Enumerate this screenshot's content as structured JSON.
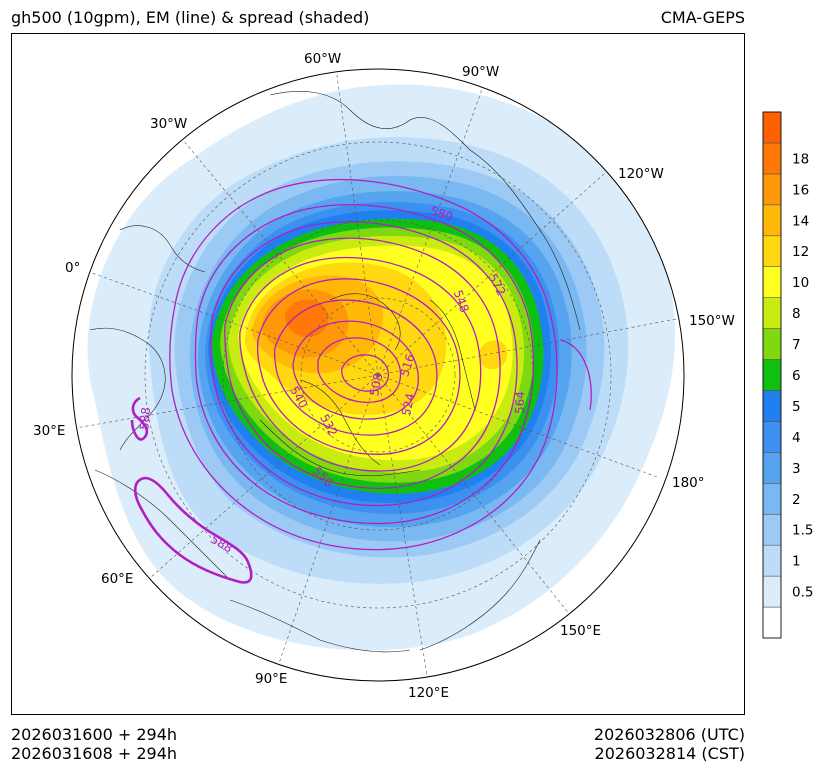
{
  "title": {
    "left": "gh500 (10gpm), EM (line) & spread (shaded)",
    "right": "CMA-GEPS"
  },
  "footer": {
    "init_utc": "2026031600 + 294h",
    "init_cst": "2026031608 + 294h",
    "valid_utc": "2026032806 (UTC)",
    "valid_cst": "2026032814 (CST)"
  },
  "map": {
    "projection": "north-polar-stereographic",
    "longitude_labels": [
      "60°W",
      "90°W",
      "30°W",
      "120°W",
      "0°",
      "150°W",
      "30°E",
      "180°",
      "60°E",
      "150°E",
      "90°E",
      "120°E"
    ],
    "contour_labels": [
      "580",
      "572",
      "548",
      "516",
      "508",
      "524",
      "564",
      "540",
      "532",
      "556",
      "588",
      "588"
    ],
    "contour_color": "#b020c0"
  },
  "colorbar": {
    "levels": [
      "0.5",
      "1",
      "1.5",
      "2",
      "3",
      "4",
      "5",
      "6",
      "7",
      "8",
      "10",
      "12",
      "14",
      "16",
      "18"
    ],
    "colors": [
      "#ffffff",
      "#dbecfb",
      "#bcdcf8",
      "#9ccaf5",
      "#7ab8f2",
      "#56a4ef",
      "#3c90f0",
      "#2080f0",
      "#10c010",
      "#80d810",
      "#c8ec10",
      "#ffff20",
      "#ffd810",
      "#ffb808",
      "#ff9808",
      "#ff7808",
      "#ff6000"
    ]
  }
}
